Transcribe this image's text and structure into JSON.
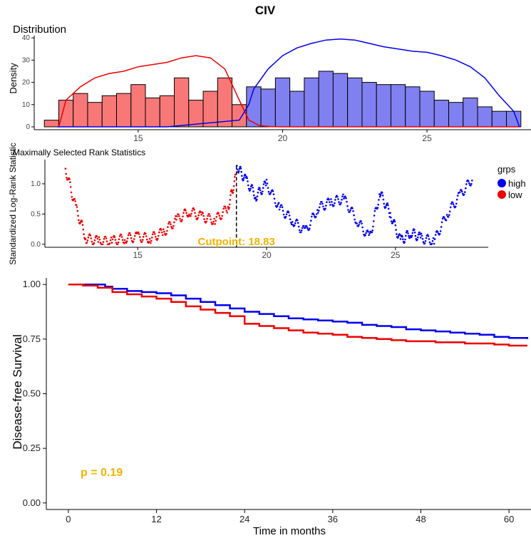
{
  "figure_title": "CIV",
  "colors": {
    "high": "#0000EE",
    "low": "#EE0000",
    "high_fill": "#8080F0",
    "low_fill": "#F87878",
    "annotation": "#F0B400"
  },
  "chart_data": [
    {
      "type": "bar",
      "subtype": "histogram-with-density",
      "title": "Distribution",
      "ylabel": "Density",
      "xlabel": "",
      "xticks": [
        15,
        20,
        25
      ],
      "yticks": [
        0,
        10,
        20,
        30,
        40
      ],
      "xlim": [
        11.4,
        28.6
      ],
      "ylim": [
        0,
        41
      ],
      "bin_width": 0.5,
      "bins": [
        {
          "x": 12.0,
          "value": 3,
          "group": "low"
        },
        {
          "x": 12.5,
          "value": 12,
          "group": "low"
        },
        {
          "x": 13.0,
          "value": 15,
          "group": "low"
        },
        {
          "x": 13.5,
          "value": 11,
          "group": "low"
        },
        {
          "x": 14.0,
          "value": 14,
          "group": "low"
        },
        {
          "x": 14.5,
          "value": 15,
          "group": "low"
        },
        {
          "x": 15.0,
          "value": 19,
          "group": "low"
        },
        {
          "x": 15.5,
          "value": 13,
          "group": "low"
        },
        {
          "x": 16.0,
          "value": 14,
          "group": "low"
        },
        {
          "x": 16.5,
          "value": 22,
          "group": "low"
        },
        {
          "x": 17.0,
          "value": 12,
          "group": "low"
        },
        {
          "x": 17.5,
          "value": 16,
          "group": "low"
        },
        {
          "x": 18.0,
          "value": 22,
          "group": "low"
        },
        {
          "x": 18.5,
          "value": 10,
          "group": "low"
        },
        {
          "x": 19.0,
          "value": 18,
          "group": "high"
        },
        {
          "x": 19.5,
          "value": 17,
          "group": "high"
        },
        {
          "x": 20.0,
          "value": 22,
          "group": "high"
        },
        {
          "x": 20.5,
          "value": 16,
          "group": "high"
        },
        {
          "x": 21.0,
          "value": 22,
          "group": "high"
        },
        {
          "x": 21.5,
          "value": 25,
          "group": "high"
        },
        {
          "x": 22.0,
          "value": 24,
          "group": "high"
        },
        {
          "x": 22.5,
          "value": 22,
          "group": "high"
        },
        {
          "x": 23.0,
          "value": 20,
          "group": "high"
        },
        {
          "x": 23.5,
          "value": 19,
          "group": "high"
        },
        {
          "x": 24.0,
          "value": 19,
          "group": "high"
        },
        {
          "x": 24.5,
          "value": 18,
          "group": "high"
        },
        {
          "x": 25.0,
          "value": 16,
          "group": "high"
        },
        {
          "x": 25.5,
          "value": 12,
          "group": "high"
        },
        {
          "x": 26.0,
          "value": 11,
          "group": "high"
        },
        {
          "x": 26.5,
          "value": 13,
          "group": "high"
        },
        {
          "x": 27.0,
          "value": 9,
          "group": "high"
        },
        {
          "x": 27.5,
          "value": 7,
          "group": "high"
        },
        {
          "x": 28.0,
          "value": 7,
          "group": "high"
        }
      ],
      "density": {
        "low": {
          "x": [
            12.25,
            12.5,
            13,
            13.5,
            14,
            14.5,
            15,
            15.5,
            16,
            16.5,
            17,
            17.5,
            18,
            18.5,
            18.83,
            19.2,
            19.6,
            20,
            24,
            28.2
          ],
          "y": [
            0,
            12,
            18,
            22,
            24,
            25,
            27,
            28,
            29,
            31,
            32,
            31,
            26,
            12,
            3,
            0.5,
            0.1,
            0,
            0,
            0
          ]
        },
        "high": {
          "x": [
            12.2,
            16,
            18.5,
            18.83,
            19,
            19.5,
            20,
            20.5,
            21,
            21.5,
            22,
            22.5,
            23,
            23.5,
            24,
            24.5,
            25,
            25.5,
            26,
            26.5,
            27,
            27.5,
            28.0,
            28.2
          ],
          "y": [
            0,
            0,
            3,
            10,
            17,
            26,
            32,
            35.5,
            37.5,
            39,
            39.5,
            39,
            37.5,
            36,
            35,
            34,
            33.5,
            32,
            30,
            27,
            22,
            14,
            7,
            0
          ]
        }
      }
    },
    {
      "type": "scatter",
      "title": "Maximally Selected Rank Statistics",
      "ylabel": "Standardized Log-Rank Statistic",
      "xlabel": "",
      "xticks": [
        15,
        20,
        25
      ],
      "yticks": [
        0.0,
        0.5,
        1.0
      ],
      "ytick_labels": [
        "0.0",
        "0.5",
        "1.0"
      ],
      "xlim": [
        11.4,
        28.6
      ],
      "ylim": [
        -0.05,
        1.4
      ],
      "cutpoint": 18.83,
      "annotation": "Cutpoint: 18.83",
      "legend": {
        "title": "grps",
        "items": [
          {
            "label": "high",
            "group": "high"
          },
          {
            "label": "low",
            "group": "low"
          }
        ],
        "position": "right"
      },
      "series": [
        {
          "name": "low",
          "group": "low",
          "x": [
            12.2,
            12.6,
            13.0,
            13.5,
            14.0,
            14.5,
            15.0,
            15.5,
            16.0,
            16.5,
            17.0,
            17.5,
            18.0,
            18.5,
            18.8
          ],
          "y": [
            1.25,
            0.6,
            0.1,
            0.05,
            0.05,
            0.1,
            0.12,
            0.1,
            0.2,
            0.4,
            0.55,
            0.45,
            0.4,
            0.6,
            1.1
          ]
        },
        {
          "name": "high",
          "group": "high",
          "x": [
            18.85,
            19.2,
            19.6,
            20.0,
            20.5,
            21.0,
            21.5,
            22.0,
            22.5,
            23.0,
            23.5,
            24.0,
            24.4,
            24.8,
            25.2,
            25.6,
            26.0,
            26.5,
            27.0,
            27.5,
            28.0
          ],
          "y": [
            1.3,
            1.05,
            0.8,
            1.0,
            0.6,
            0.4,
            0.2,
            0.6,
            0.7,
            0.75,
            0.4,
            0.1,
            0.85,
            0.5,
            0.05,
            0.2,
            0.1,
            0.05,
            0.5,
            0.8,
            1.1
          ]
        }
      ]
    },
    {
      "type": "line",
      "subtype": "kaplan-meier",
      "xlabel": "Time in months",
      "ylabel": "Disease-free Survival",
      "xticks": [
        0,
        12,
        24,
        36,
        48,
        60
      ],
      "yticks": [
        0.0,
        0.25,
        0.5,
        0.75,
        1.0
      ],
      "ytick_labels": [
        "0.00",
        "0.25",
        "0.50",
        "0.75",
        "1.00"
      ],
      "xlim": [
        -3,
        63
      ],
      "ylim": [
        -0.03,
        1.03
      ],
      "annotation": "p = 0.19",
      "series": [
        {
          "name": "high",
          "group": "high",
          "x": [
            0,
            3,
            5,
            6,
            8,
            10,
            12,
            14,
            16,
            18,
            20,
            22,
            24,
            26,
            28,
            30,
            32,
            34,
            36,
            38,
            40,
            42,
            44,
            46,
            48,
            50,
            52,
            54,
            56,
            58,
            60,
            62.5
          ],
          "y": [
            1.0,
            1.0,
            0.99,
            0.98,
            0.97,
            0.965,
            0.96,
            0.95,
            0.935,
            0.92,
            0.905,
            0.89,
            0.875,
            0.865,
            0.855,
            0.845,
            0.84,
            0.835,
            0.83,
            0.825,
            0.815,
            0.81,
            0.805,
            0.795,
            0.79,
            0.785,
            0.78,
            0.775,
            0.77,
            0.76,
            0.755,
            0.75
          ]
        },
        {
          "name": "low",
          "group": "low",
          "x": [
            0,
            2,
            4,
            6,
            8,
            10,
            12,
            14,
            16,
            18,
            20,
            22,
            24,
            26,
            28,
            30,
            32,
            34,
            36,
            38,
            40,
            42,
            44,
            46,
            48,
            50,
            52,
            54,
            56,
            58,
            60,
            62.5
          ],
          "y": [
            1.0,
            0.995,
            0.985,
            0.965,
            0.955,
            0.945,
            0.935,
            0.92,
            0.9,
            0.885,
            0.87,
            0.855,
            0.82,
            0.81,
            0.8,
            0.79,
            0.78,
            0.775,
            0.77,
            0.76,
            0.755,
            0.75,
            0.745,
            0.74,
            0.74,
            0.735,
            0.735,
            0.73,
            0.73,
            0.725,
            0.72,
            0.72
          ]
        }
      ]
    }
  ]
}
